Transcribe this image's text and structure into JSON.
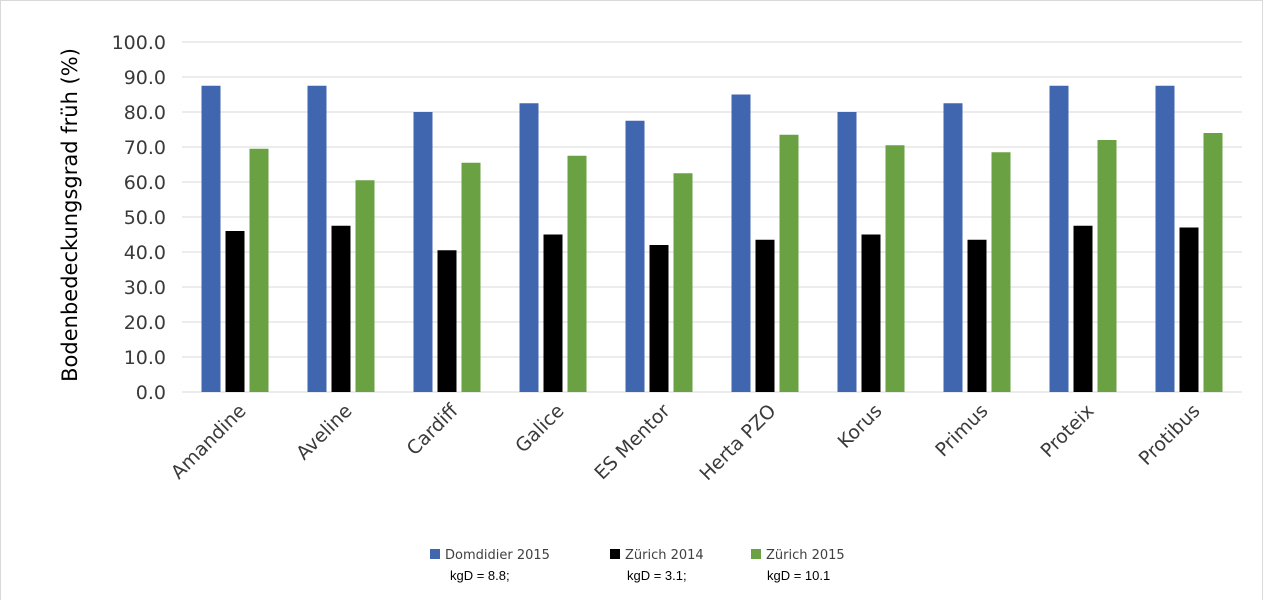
{
  "chart_data": {
    "type": "bar",
    "title": "",
    "xlabel": "",
    "ylabel": "Bodenbedeckungsgrad früh (%)",
    "ylim": [
      0,
      100
    ],
    "ytick_step": 10,
    "ytick_labels": [
      "0.0",
      "10.0",
      "20.0",
      "30.0",
      "40.0",
      "50.0",
      "60.0",
      "70.0",
      "80.0",
      "90.0",
      "100.0"
    ],
    "grid": true,
    "legend_position": "bottom",
    "categories": [
      "Amandine",
      "Aveline",
      "Cardiff",
      "Galice",
      "ES Mentor",
      "Herta PZO",
      "Korus",
      "Primus",
      "Proteix",
      "Protibus"
    ],
    "series": [
      {
        "name": "Domdidier 2015",
        "color": "#4066b0",
        "note": "kgD = 8.8;",
        "values": [
          87.5,
          87.5,
          80.0,
          82.5,
          77.5,
          85.0,
          80.0,
          82.5,
          87.5,
          87.5
        ]
      },
      {
        "name": "Zürich 2014",
        "color": "#000000",
        "note": "kgD = 3.1;",
        "values": [
          46.0,
          47.5,
          40.5,
          45.0,
          42.0,
          43.5,
          45.0,
          43.5,
          47.5,
          47.0
        ]
      },
      {
        "name": "Zürich 2015",
        "color": "#6aa142",
        "note": "kgD = 10.1",
        "values": [
          69.5,
          60.5,
          65.5,
          67.5,
          62.5,
          73.5,
          70.5,
          68.5,
          72.0,
          74.0
        ]
      }
    ]
  }
}
